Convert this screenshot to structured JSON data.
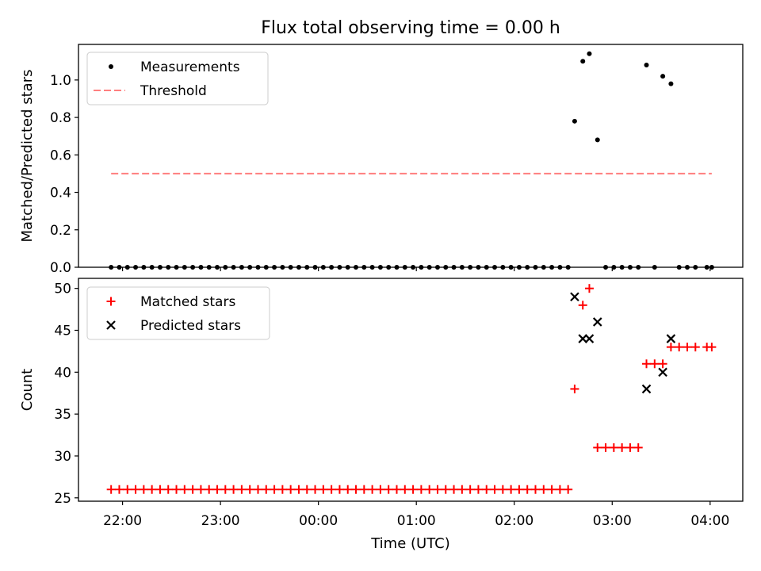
{
  "figure": {
    "title": "Flux total observing time = 0.00 h",
    "xlabel": "Time (UTC)",
    "xtick_labels": [
      "22:00",
      "23:00",
      "00:00",
      "01:00",
      "02:00",
      "03:00",
      "04:00"
    ]
  },
  "chart_data": [
    {
      "type": "scatter",
      "ylabel": "Matched/Predicted stars",
      "ylim": [
        0,
        1.19
      ],
      "yticks": [
        0.0,
        0.2,
        0.4,
        0.6,
        0.8,
        1.0
      ],
      "ytick_labels": [
        "0.0",
        "0.2",
        "0.4",
        "0.6",
        "0.8",
        "1.0"
      ],
      "xlim": [
        "21:33",
        "04:20"
      ],
      "x_units": "time of day (UTC)",
      "legend": {
        "placement": "top-left",
        "entries": [
          "Measurements",
          "Threshold"
        ]
      },
      "series": [
        {
          "name": "Measurements",
          "marker": "dot",
          "color": "#000000",
          "points": [
            [
              "21:53",
              0.0
            ],
            [
              "21:58",
              0.0
            ],
            [
              "22:03",
              0.0
            ],
            [
              "22:08",
              0.0
            ],
            [
              "22:13",
              0.0
            ],
            [
              "22:18",
              0.0
            ],
            [
              "22:23",
              0.0
            ],
            [
              "22:28",
              0.0
            ],
            [
              "22:33",
              0.0
            ],
            [
              "22:38",
              0.0
            ],
            [
              "22:43",
              0.0
            ],
            [
              "22:48",
              0.0
            ],
            [
              "22:53",
              0.0
            ],
            [
              "22:58",
              0.0
            ],
            [
              "23:03",
              0.0
            ],
            [
              "23:08",
              0.0
            ],
            [
              "23:13",
              0.0
            ],
            [
              "23:18",
              0.0
            ],
            [
              "23:23",
              0.0
            ],
            [
              "23:28",
              0.0
            ],
            [
              "23:33",
              0.0
            ],
            [
              "23:38",
              0.0
            ],
            [
              "23:43",
              0.0
            ],
            [
              "23:48",
              0.0
            ],
            [
              "23:53",
              0.0
            ],
            [
              "23:58",
              0.0
            ],
            [
              "00:03",
              0.0
            ],
            [
              "00:08",
              0.0
            ],
            [
              "00:13",
              0.0
            ],
            [
              "00:18",
              0.0
            ],
            [
              "00:23",
              0.0
            ],
            [
              "00:28",
              0.0
            ],
            [
              "00:33",
              0.0
            ],
            [
              "00:38",
              0.0
            ],
            [
              "00:43",
              0.0
            ],
            [
              "00:48",
              0.0
            ],
            [
              "00:53",
              0.0
            ],
            [
              "00:58",
              0.0
            ],
            [
              "01:03",
              0.0
            ],
            [
              "01:08",
              0.0
            ],
            [
              "01:13",
              0.0
            ],
            [
              "01:18",
              0.0
            ],
            [
              "01:23",
              0.0
            ],
            [
              "01:28",
              0.0
            ],
            [
              "01:33",
              0.0
            ],
            [
              "01:38",
              0.0
            ],
            [
              "01:43",
              0.0
            ],
            [
              "01:48",
              0.0
            ],
            [
              "01:53",
              0.0
            ],
            [
              "01:58",
              0.0
            ],
            [
              "02:03",
              0.0
            ],
            [
              "02:08",
              0.0
            ],
            [
              "02:13",
              0.0
            ],
            [
              "02:18",
              0.0
            ],
            [
              "02:23",
              0.0
            ],
            [
              "02:28",
              0.0
            ],
            [
              "02:33",
              0.0
            ],
            [
              "02:37",
              0.78
            ],
            [
              "02:42",
              1.1
            ],
            [
              "02:46",
              1.14
            ],
            [
              "02:51",
              0.68
            ],
            [
              "02:56",
              0.0
            ],
            [
              "03:01",
              0.0
            ],
            [
              "03:06",
              0.0
            ],
            [
              "03:11",
              0.0
            ],
            [
              "03:16",
              0.0
            ],
            [
              "03:21",
              1.08
            ],
            [
              "03:26",
              0.0
            ],
            [
              "03:31",
              1.02
            ],
            [
              "03:36",
              0.98
            ],
            [
              "03:41",
              0.0
            ],
            [
              "03:46",
              0.0
            ],
            [
              "03:51",
              0.0
            ],
            [
              "03:58",
              0.0
            ],
            [
              "04:01",
              0.0
            ]
          ]
        },
        {
          "name": "Threshold",
          "marker": "dashed-line",
          "color": "#ff7f7f",
          "points": [
            [
              "21:53",
              0.5
            ],
            [
              "04:01",
              0.5
            ]
          ]
        }
      ]
    },
    {
      "type": "scatter",
      "ylabel": "Count",
      "ylim": [
        24.6,
        51.2
      ],
      "yticks": [
        25,
        30,
        35,
        40,
        45,
        50
      ],
      "ytick_labels": [
        "25",
        "30",
        "35",
        "40",
        "45",
        "50"
      ],
      "xlim": [
        "21:33",
        "04:20"
      ],
      "x_units": "time of day (UTC)",
      "legend": {
        "placement": "top-left",
        "entries": [
          "Matched stars",
          "Predicted stars"
        ]
      },
      "series": [
        {
          "name": "Matched stars",
          "marker": "plus",
          "color": "#ff0000",
          "points": [
            [
              "21:53",
              26
            ],
            [
              "21:58",
              26
            ],
            [
              "22:03",
              26
            ],
            [
              "22:08",
              26
            ],
            [
              "22:13",
              26
            ],
            [
              "22:18",
              26
            ],
            [
              "22:23",
              26
            ],
            [
              "22:28",
              26
            ],
            [
              "22:33",
              26
            ],
            [
              "22:38",
              26
            ],
            [
              "22:43",
              26
            ],
            [
              "22:48",
              26
            ],
            [
              "22:53",
              26
            ],
            [
              "22:58",
              26
            ],
            [
              "23:03",
              26
            ],
            [
              "23:08",
              26
            ],
            [
              "23:13",
              26
            ],
            [
              "23:18",
              26
            ],
            [
              "23:23",
              26
            ],
            [
              "23:28",
              26
            ],
            [
              "23:33",
              26
            ],
            [
              "23:38",
              26
            ],
            [
              "23:43",
              26
            ],
            [
              "23:48",
              26
            ],
            [
              "23:53",
              26
            ],
            [
              "23:58",
              26
            ],
            [
              "00:03",
              26
            ],
            [
              "00:08",
              26
            ],
            [
              "00:13",
              26
            ],
            [
              "00:18",
              26
            ],
            [
              "00:23",
              26
            ],
            [
              "00:28",
              26
            ],
            [
              "00:33",
              26
            ],
            [
              "00:38",
              26
            ],
            [
              "00:43",
              26
            ],
            [
              "00:48",
              26
            ],
            [
              "00:53",
              26
            ],
            [
              "00:58",
              26
            ],
            [
              "01:03",
              26
            ],
            [
              "01:08",
              26
            ],
            [
              "01:13",
              26
            ],
            [
              "01:18",
              26
            ],
            [
              "01:23",
              26
            ],
            [
              "01:28",
              26
            ],
            [
              "01:33",
              26
            ],
            [
              "01:38",
              26
            ],
            [
              "01:43",
              26
            ],
            [
              "01:48",
              26
            ],
            [
              "01:53",
              26
            ],
            [
              "01:58",
              26
            ],
            [
              "02:03",
              26
            ],
            [
              "02:08",
              26
            ],
            [
              "02:13",
              26
            ],
            [
              "02:18",
              26
            ],
            [
              "02:23",
              26
            ],
            [
              "02:28",
              26
            ],
            [
              "02:33",
              26
            ],
            [
              "02:37",
              38
            ],
            [
              "02:42",
              48
            ],
            [
              "02:46",
              50
            ],
            [
              "02:51",
              31
            ],
            [
              "02:56",
              31
            ],
            [
              "03:01",
              31
            ],
            [
              "03:06",
              31
            ],
            [
              "03:11",
              31
            ],
            [
              "03:16",
              31
            ],
            [
              "03:21",
              41
            ],
            [
              "03:26",
              41
            ],
            [
              "03:31",
              41
            ],
            [
              "03:36",
              43
            ],
            [
              "03:41",
              43
            ],
            [
              "03:46",
              43
            ],
            [
              "03:51",
              43
            ],
            [
              "03:58",
              43
            ],
            [
              "04:01",
              43
            ]
          ]
        },
        {
          "name": "Predicted stars",
          "marker": "x",
          "color": "#000000",
          "points": [
            [
              "02:37",
              49
            ],
            [
              "02:42",
              44
            ],
            [
              "02:46",
              44
            ],
            [
              "02:51",
              46
            ],
            [
              "03:21",
              38
            ],
            [
              "03:31",
              40
            ],
            [
              "03:36",
              44
            ]
          ]
        }
      ]
    }
  ]
}
